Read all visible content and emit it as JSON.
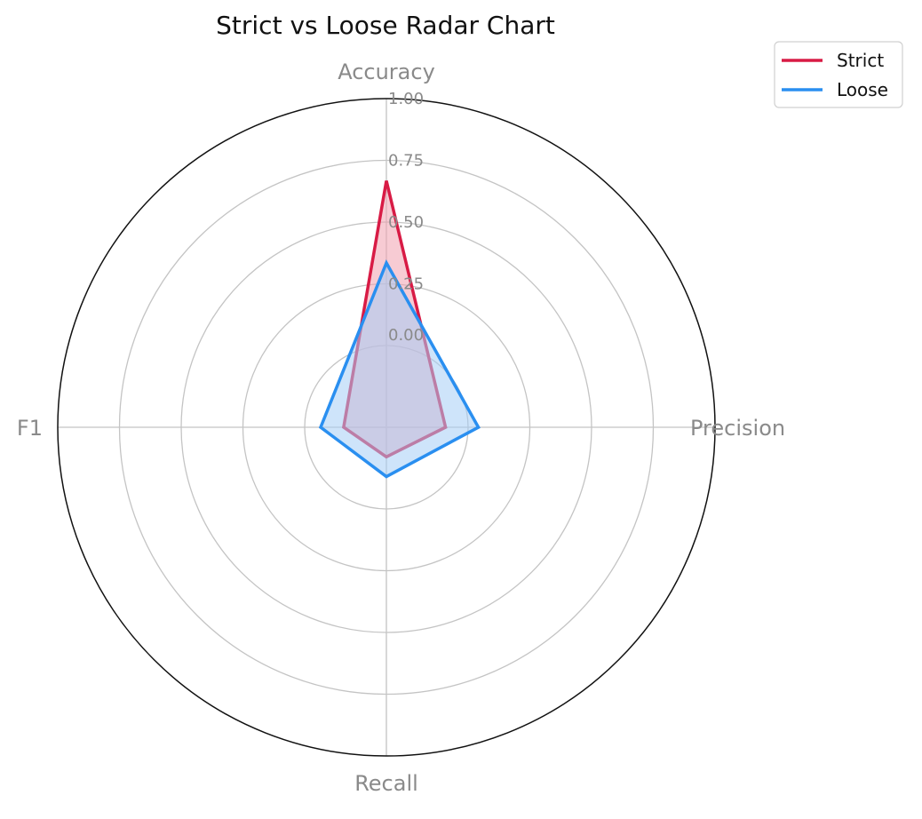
{
  "chart_data": {
    "type": "radar",
    "title": "Strict vs Loose Radar Chart",
    "axes": [
      "Accuracy",
      "Precision",
      "Recall",
      "F1"
    ],
    "rticks": [
      "0.00",
      "0.25",
      "0.50",
      "0.75",
      "1.00"
    ],
    "rlim": [
      0,
      1
    ],
    "grid": true,
    "legend_position": "top-right",
    "series": [
      {
        "name": "Strict",
        "values": [
          0.75,
          0.18,
          0.09,
          0.13
        ],
        "color": "#d81b45",
        "fill": "#f0a0ae"
      },
      {
        "name": "Loose",
        "values": [
          0.5,
          0.28,
          0.15,
          0.2
        ],
        "color": "#2a8ff0",
        "fill": "#a6cdf5"
      }
    ]
  }
}
